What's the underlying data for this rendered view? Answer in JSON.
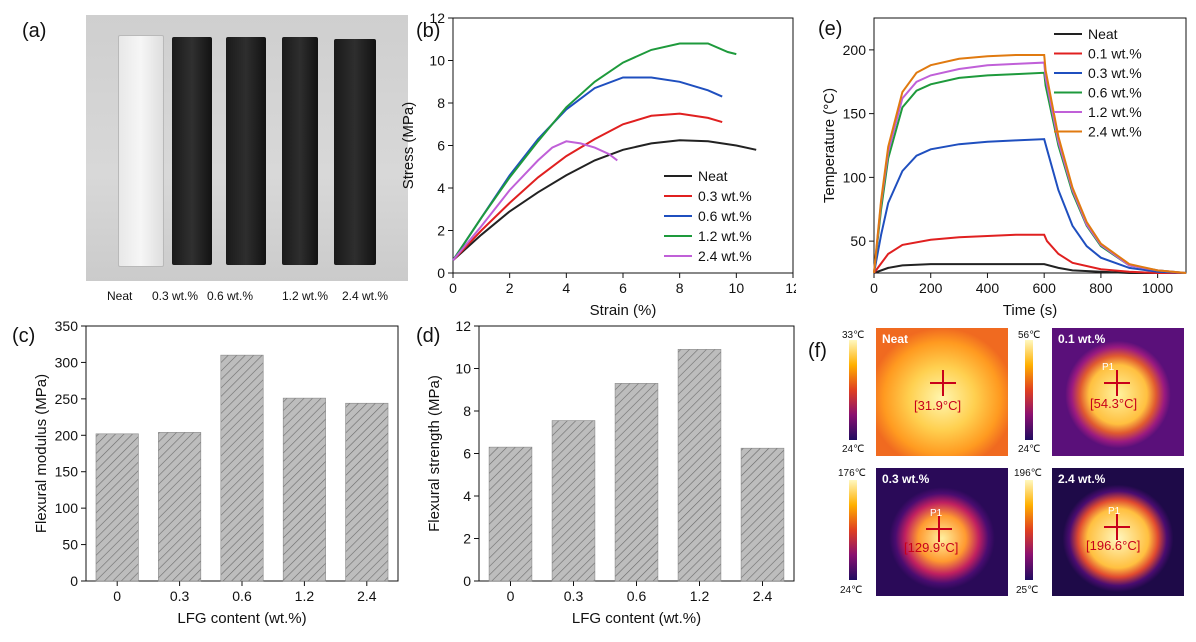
{
  "panels": {
    "a": "(a)",
    "b": "(b)",
    "c": "(c)",
    "d": "(d)",
    "e": "(e)",
    "f": "(f)"
  },
  "photo": {
    "labels": [
      "Neat",
      "0.3 wt.%",
      "0.6 wt.%",
      "1.2 wt.%",
      "2.4 wt.%"
    ]
  },
  "colors": {
    "neat": "#222222",
    "c01": "#e02020",
    "c03": "#1f4fbf",
    "c06": "#1e9a3c",
    "c12": "#c060d8",
    "c24": "#e07a10",
    "bar": "#b5b5b5"
  },
  "chart_data": [
    {
      "id": "b",
      "type": "line",
      "xlabel": "Strain (%)",
      "ylabel": "Stress (MPa)",
      "xlim": [
        0,
        12
      ],
      "ylim": [
        0,
        12
      ],
      "xticks": [
        0,
        2,
        4,
        6,
        8,
        10,
        12
      ],
      "yticks": [
        0,
        2,
        4,
        6,
        8,
        10,
        12
      ],
      "legend": [
        "Neat",
        "0.3 wt.%",
        "0.6 wt.%",
        "1.2 wt.%",
        "2.4 wt.%"
      ],
      "series": [
        {
          "name": "Neat",
          "color": "#222222",
          "x": [
            0,
            1,
            2,
            3,
            4,
            5,
            6,
            7,
            8,
            9,
            10,
            10.7
          ],
          "y": [
            0.6,
            1.8,
            2.9,
            3.8,
            4.6,
            5.3,
            5.8,
            6.1,
            6.25,
            6.2,
            6.0,
            5.8
          ]
        },
        {
          "name": "0.3 wt.%",
          "color": "#e02020",
          "x": [
            0,
            1,
            2,
            3,
            4,
            5,
            6,
            7,
            8,
            9,
            9.5
          ],
          "y": [
            0.6,
            2.0,
            3.3,
            4.5,
            5.5,
            6.3,
            7.0,
            7.4,
            7.5,
            7.3,
            7.1
          ]
        },
        {
          "name": "0.6 wt.%",
          "color": "#1f4fbf",
          "x": [
            0,
            1,
            2,
            3,
            4,
            5,
            6,
            7,
            8,
            9,
            9.5
          ],
          "y": [
            0.6,
            2.6,
            4.6,
            6.3,
            7.7,
            8.7,
            9.2,
            9.2,
            9.0,
            8.6,
            8.3
          ]
        },
        {
          "name": "1.2 wt.%",
          "color": "#1e9a3c",
          "x": [
            0,
            1,
            2,
            3,
            4,
            5,
            6,
            7,
            8,
            9,
            9.7,
            10
          ],
          "y": [
            0.6,
            2.6,
            4.5,
            6.2,
            7.8,
            9.0,
            9.9,
            10.5,
            10.8,
            10.8,
            10.4,
            10.3
          ]
        },
        {
          "name": "2.4 wt.%",
          "color": "#c060d8",
          "x": [
            0,
            1,
            2,
            3,
            3.5,
            4,
            4.5,
            5,
            5.5,
            5.8
          ],
          "y": [
            0.6,
            2.2,
            3.9,
            5.3,
            5.9,
            6.2,
            6.1,
            5.9,
            5.6,
            5.3
          ]
        }
      ]
    },
    {
      "id": "c",
      "type": "bar",
      "xlabel": "LFG content (wt.%)",
      "ylabel": "Flexural modulus (MPa)",
      "categories": [
        "0",
        "0.3",
        "0.6",
        "1.2",
        "2.4"
      ],
      "values": [
        202,
        204,
        310,
        251,
        244
      ],
      "ylim": [
        0,
        350
      ],
      "yticks": [
        0,
        50,
        100,
        150,
        200,
        250,
        300,
        350
      ]
    },
    {
      "id": "d",
      "type": "bar",
      "xlabel": "LFG content (wt.%)",
      "ylabel": "Flexural strength (MPa)",
      "categories": [
        "0",
        "0.3",
        "0.6",
        "1.2",
        "2.4"
      ],
      "values": [
        6.3,
        7.55,
        9.3,
        10.9,
        6.25
      ],
      "ylim": [
        0,
        12
      ],
      "yticks": [
        0,
        2,
        4,
        6,
        8,
        10,
        12
      ]
    },
    {
      "id": "e",
      "type": "line",
      "xlabel": "Time (s)",
      "ylabel": "Temperature (°C)",
      "xlim": [
        0,
        1100
      ],
      "ylim": [
        25,
        225
      ],
      "xticks": [
        0,
        200,
        400,
        600,
        800,
        1000
      ],
      "yticks": [
        50,
        100,
        150,
        200
      ],
      "legend": [
        "Neat",
        "0.1 wt.%",
        "0.3 wt.%",
        "0.6 wt.%",
        "1.2 wt.%",
        "2.4 wt.%"
      ],
      "series": [
        {
          "name": "Neat",
          "color": "#222222",
          "x": [
            0,
            50,
            100,
            200,
            300,
            400,
            500,
            600,
            650,
            700,
            800,
            900,
            1000,
            1100
          ],
          "y": [
            25,
            29,
            31,
            32,
            32,
            32,
            32,
            32,
            29,
            27,
            26,
            25,
            25,
            25
          ]
        },
        {
          "name": "0.1 wt.%",
          "color": "#e02020",
          "x": [
            0,
            50,
            100,
            200,
            300,
            400,
            500,
            600,
            610,
            650,
            700,
            800,
            900,
            1000,
            1100
          ],
          "y": [
            25,
            40,
            47,
            51,
            53,
            54,
            55,
            55,
            50,
            40,
            33,
            28,
            26,
            25,
            25
          ]
        },
        {
          "name": "0.3 wt.%",
          "color": "#1f4fbf",
          "x": [
            0,
            25,
            50,
            100,
            150,
            200,
            300,
            400,
            500,
            600,
            610,
            650,
            700,
            750,
            800,
            900,
            1000,
            1100
          ],
          "y": [
            25,
            55,
            80,
            105,
            117,
            122,
            126,
            128,
            129,
            130,
            122,
            90,
            62,
            46,
            37,
            29,
            26,
            25
          ]
        },
        {
          "name": "0.6 wt.%",
          "color": "#1e9a3c",
          "x": [
            0,
            25,
            50,
            100,
            150,
            200,
            300,
            400,
            500,
            600,
            605,
            650,
            700,
            750,
            800,
            900,
            1000,
            1100
          ],
          "y": [
            25,
            75,
            115,
            155,
            168,
            173,
            178,
            180,
            181,
            182,
            172,
            125,
            88,
            62,
            46,
            31,
            27,
            25
          ]
        },
        {
          "name": "1.2 wt.%",
          "color": "#c060d8",
          "x": [
            0,
            25,
            50,
            100,
            150,
            200,
            300,
            400,
            500,
            600,
            605,
            650,
            700,
            750,
            800,
            900,
            1000,
            1100
          ],
          "y": [
            25,
            80,
            120,
            162,
            175,
            180,
            185,
            188,
            189,
            190,
            178,
            128,
            90,
            63,
            47,
            31,
            27,
            25
          ]
        },
        {
          "name": "2.4 wt.%",
          "color": "#e07a10",
          "x": [
            0,
            25,
            50,
            100,
            150,
            200,
            300,
            400,
            500,
            600,
            605,
            650,
            700,
            750,
            800,
            900,
            1000,
            1100
          ],
          "y": [
            25,
            82,
            124,
            167,
            182,
            188,
            193,
            195,
            196,
            196,
            184,
            132,
            92,
            65,
            48,
            32,
            27,
            25
          ]
        }
      ]
    }
  ],
  "thermal": [
    {
      "title": "Neat",
      "max": "33℃",
      "min": "24℃",
      "reading": "[31.9°C]",
      "p1": ""
    },
    {
      "title": "0.1 wt.%",
      "max": "56℃",
      "min": "24℃",
      "reading": "[54.3°C]",
      "p1": "P1"
    },
    {
      "title": "0.3 wt.%",
      "max": "176℃",
      "min": "24℃",
      "reading": "[129.9°C]",
      "p1": "P1"
    },
    {
      "title": "2.4 wt.%",
      "max": "196℃",
      "min": "25℃",
      "reading": "[196.6°C]",
      "p1": "P1"
    }
  ]
}
